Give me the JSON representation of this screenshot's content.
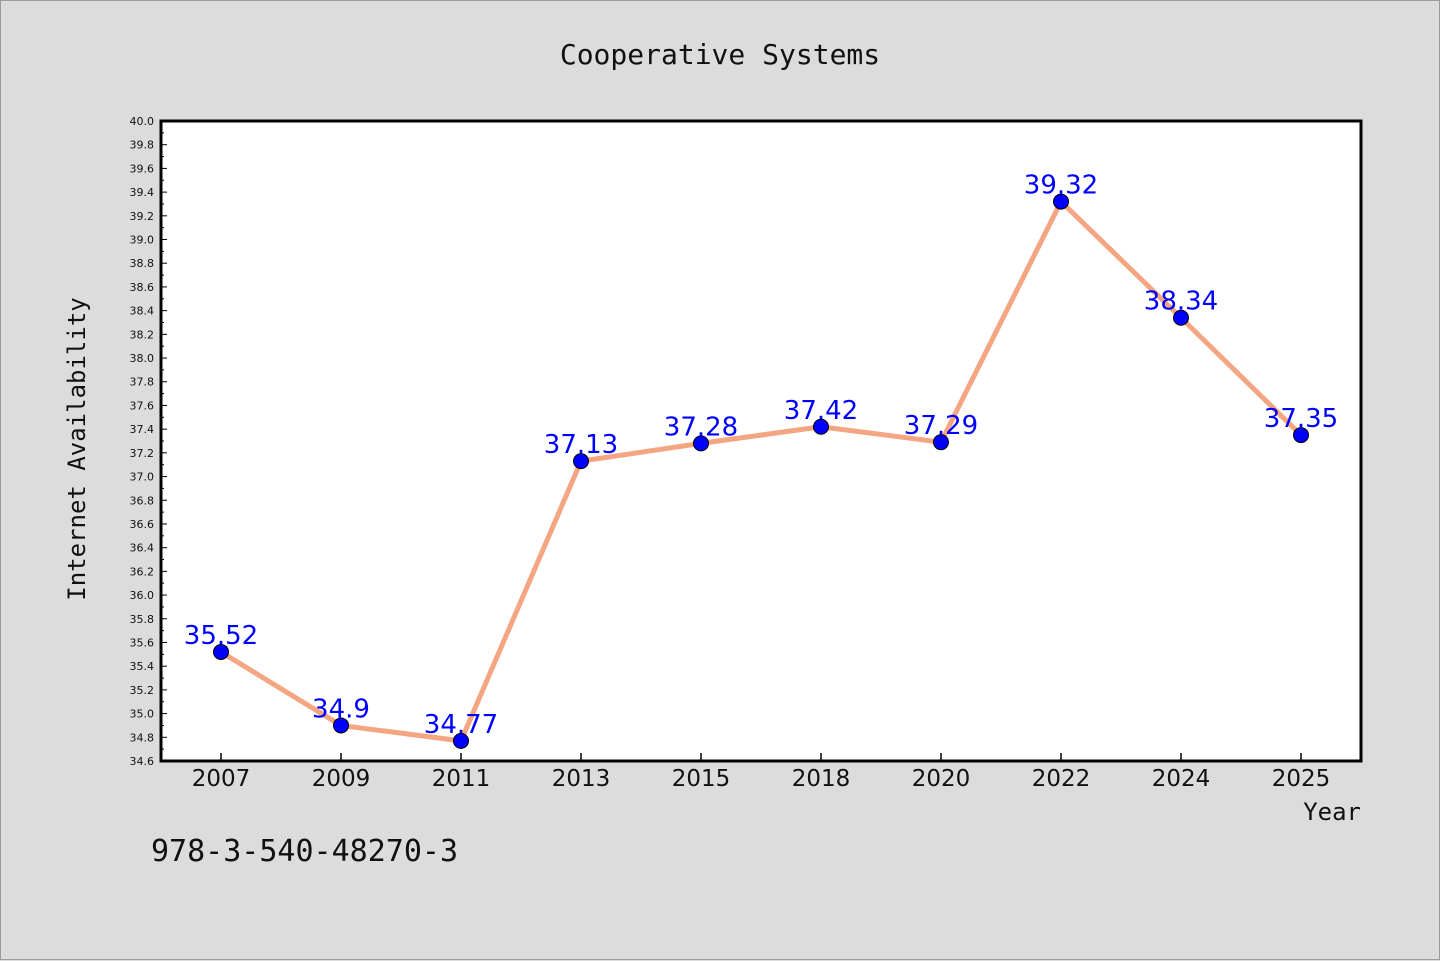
{
  "chart_data": {
    "type": "line",
    "title": "Cooperative Systems",
    "xlabel": "Year",
    "ylabel": "Internet Availability",
    "categories": [
      "2007",
      "2009",
      "2011",
      "2013",
      "2015",
      "2018",
      "2020",
      "2022",
      "2024",
      "2025"
    ],
    "series": [
      {
        "values": [
          35.52,
          34.9,
          34.77,
          37.13,
          37.28,
          37.42,
          37.29,
          39.32,
          38.34,
          37.35
        ],
        "data_labels": [
          "35.52",
          "34.9",
          "34.77",
          "37.13",
          "37.28",
          "37.42",
          "37.29",
          "39.32",
          "38.34",
          "37.35"
        ]
      }
    ],
    "ylim": [
      34.6,
      40.0
    ],
    "yticks": [
      "34.6",
      "34.8",
      "35.0",
      "35.2",
      "35.4",
      "35.6",
      "35.8",
      "36.0",
      "36.2",
      "36.4",
      "36.6",
      "36.8",
      "37.0",
      "37.2",
      "37.4",
      "37.6",
      "37.8",
      "38.0",
      "38.2",
      "38.4",
      "38.6",
      "38.8",
      "39.0",
      "39.2",
      "39.4",
      "39.6",
      "39.8",
      "40.0"
    ],
    "grid": false,
    "legend": "none",
    "colors": {
      "line": "#f4a582",
      "marker": "#0000ff",
      "data_label": "#0000ff",
      "plot_background": "#ffffff",
      "figure_background": "#dcdcdc"
    }
  },
  "footer": {
    "code": "978-3-540-48270-3"
  }
}
